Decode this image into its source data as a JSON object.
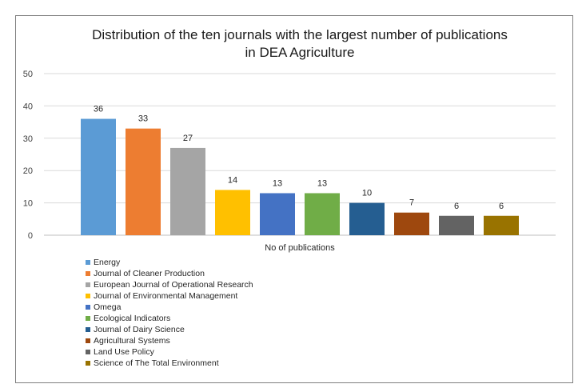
{
  "chart_data": {
    "type": "bar",
    "title_lines": [
      "Distribution of the ten journals with the largest number of publications",
      "in DEA Agriculture"
    ],
    "xlabel": "No of publications",
    "ylabel": "",
    "ylim": [
      0,
      50
    ],
    "yticks": [
      "0",
      "10",
      "20",
      "30",
      "40",
      "50"
    ],
    "grid": true,
    "legend_position": "bottom-left",
    "series": [
      {
        "name": "Energy",
        "value": 36,
        "color": "#5b9bd5"
      },
      {
        "name": "Journal of Cleaner Production",
        "value": 33,
        "color": "#ed7d31"
      },
      {
        "name": "European Journal of Operational Research",
        "value": 27,
        "color": "#a5a5a5"
      },
      {
        "name": "Journal of Environmental Management",
        "value": 14,
        "color": "#ffc000"
      },
      {
        "name": "Omega",
        "value": 13,
        "color": "#4472c4"
      },
      {
        "name": "Ecological Indicators",
        "value": 13,
        "color": "#70ad47"
      },
      {
        "name": "Journal of Dairy Science",
        "value": 10,
        "color": "#255e91"
      },
      {
        "name": "Agricultural Systems",
        "value": 7,
        "color": "#9e480e"
      },
      {
        "name": "Land Use Policy",
        "value": 6,
        "color": "#636363"
      },
      {
        "name": "Science of The Total Environment",
        "value": 6,
        "color": "#997300"
      }
    ]
  }
}
